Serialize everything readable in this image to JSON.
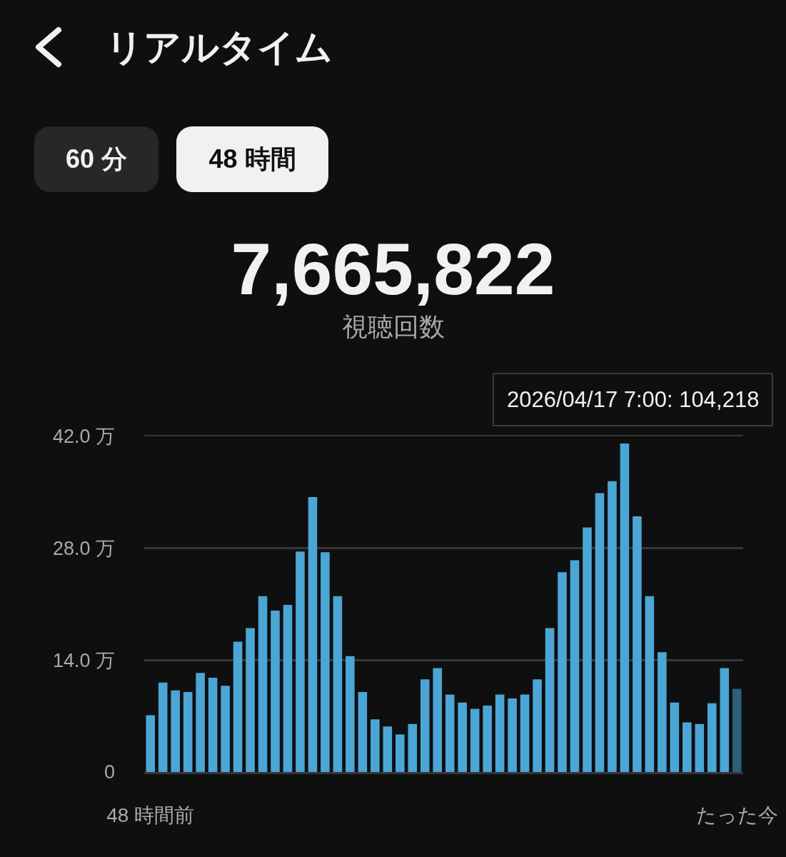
{
  "chart_data": {
    "type": "bar",
    "title": "リアルタイム",
    "annotations": [
      "60 分",
      "48 時間",
      "7,665,822",
      "視聴回数",
      "2026/04/17 7:00: 104,218"
    ],
    "categories": [
      "48 時間前",
      null,
      null,
      null,
      null,
      null,
      null,
      null,
      null,
      null,
      null,
      null,
      null,
      null,
      null,
      null,
      null,
      null,
      null,
      null,
      null,
      null,
      null,
      null,
      null,
      null,
      null,
      null,
      null,
      null,
      null,
      null,
      null,
      null,
      null,
      null,
      null,
      null,
      null,
      null,
      null,
      null,
      null,
      null,
      null,
      null,
      null,
      "たった今"
    ],
    "values": [
      7.1,
      11.2,
      10.2,
      10.0,
      12.4,
      11.8,
      10.8,
      16.3,
      18.0,
      22.0,
      20.2,
      20.9,
      27.6,
      34.4,
      27.5,
      22.0,
      14.5,
      10.0,
      6.6,
      5.7,
      4.7,
      6.0,
      11.6,
      13.0,
      9.7,
      8.7,
      7.9,
      8.3,
      9.7,
      9.2,
      9.7,
      11.6,
      18.0,
      25.0,
      26.5,
      30.6,
      34.9,
      36.4,
      41.1,
      32.0,
      22.0,
      15.0,
      8.7,
      6.2,
      6.0,
      8.6,
      13.0,
      10.4
    ],
    "colors": [
      "#4ba6d6",
      "#4ba6d6",
      "#4ba6d6",
      "#4ba6d6",
      "#4ba6d6",
      "#4ba6d6",
      "#4ba6d6",
      "#4ba6d6",
      "#4ba6d6",
      "#4ba6d6",
      "#4ba6d6",
      "#4ba6d6",
      "#4ba6d6",
      "#4ba6d6",
      "#4ba6d6",
      "#4ba6d6",
      "#4ba6d6",
      "#4ba6d6",
      "#4ba6d6",
      "#4ba6d6",
      "#4ba6d6",
      "#4ba6d6",
      "#4ba6d6",
      "#4ba6d6",
      "#4ba6d6",
      "#4ba6d6",
      "#4ba6d6",
      "#4ba6d6",
      "#4ba6d6",
      "#4ba6d6",
      "#4ba6d6",
      "#4ba6d6",
      "#4ba6d6",
      "#4ba6d6",
      "#4ba6d6",
      "#4ba6d6",
      "#4ba6d6",
      "#4ba6d6",
      "#4ba6d6",
      "#4ba6d6",
      "#4ba6d6",
      "#4ba6d6",
      "#4ba6d6",
      "#4ba6d6",
      "#4ba6d6",
      "#4ba6d6",
      "#4ba6d6",
      "#2d6079"
    ],
    "ylim": [
      0,
      42
    ],
    "yticks": [
      0,
      {
        "value": 14,
        "label": "14.0 万"
      },
      {
        "value": 28,
        "label": "28.0 万"
      },
      {
        "value": 42,
        "label": "42.0 万"
      }
    ],
    "grid": "y"
  }
}
